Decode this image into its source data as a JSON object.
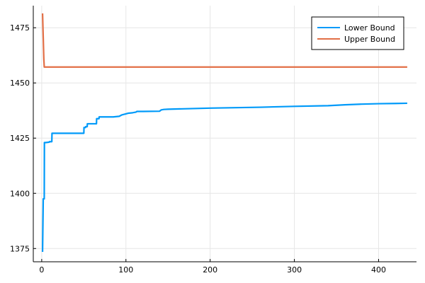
{
  "chart_data": {
    "type": "line",
    "title": "",
    "xlabel": "",
    "ylabel": "",
    "xlim": [
      -10,
      445
    ],
    "ylim": [
      1369,
      1485
    ],
    "grid": true,
    "legend_position": "top-right",
    "x_ticks": [
      0,
      100,
      200,
      300,
      400
    ],
    "y_ticks": [
      1375,
      1400,
      1425,
      1450,
      1475
    ],
    "series": [
      {
        "name": "Lower Bound",
        "color": "#009AF9",
        "x": [
          1,
          1.8,
          2,
          3,
          3.2,
          5,
          9,
          9.2,
          12,
          12.2,
          50,
          50.2,
          52,
          52.2,
          54,
          54.2,
          65,
          65.2,
          68,
          68.2,
          85,
          92,
          95,
          100,
          103,
          108,
          112,
          113,
          120,
          140,
          142,
          145,
          150,
          180,
          200,
          230,
          260,
          300,
          340,
          360,
          380,
          400,
          420,
          434
        ],
        "y": [
          1373.5,
          1397.5,
          1397.5,
          1397.5,
          1423,
          1423,
          1423.2,
          1423.4,
          1423.4,
          1427.2,
          1427.2,
          1429.8,
          1429.8,
          1430.2,
          1430.2,
          1431.5,
          1431.5,
          1433.8,
          1433.8,
          1434.6,
          1434.6,
          1434.9,
          1435.5,
          1436,
          1436.3,
          1436.5,
          1436.8,
          1437.1,
          1437.1,
          1437.2,
          1437.8,
          1438.0,
          1438.1,
          1438.4,
          1438.6,
          1438.8,
          1439.0,
          1439.4,
          1439.7,
          1440.1,
          1440.4,
          1440.6,
          1440.7,
          1440.8
        ]
      },
      {
        "name": "Upper Bound",
        "color": "#E26F46",
        "x": [
          1,
          2.5,
          3,
          434
        ],
        "y": [
          1481.5,
          1461,
          1457.2,
          1457.2
        ]
      }
    ]
  }
}
